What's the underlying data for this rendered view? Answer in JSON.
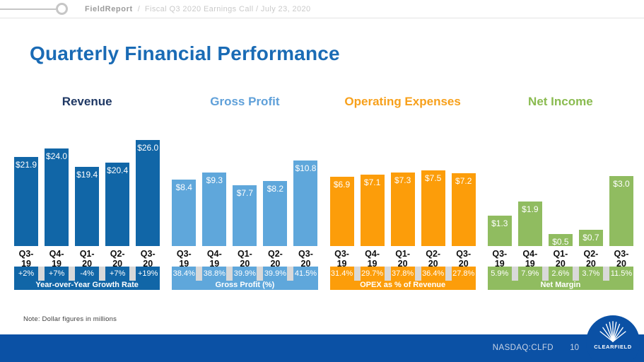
{
  "header": {
    "brand": "FieldReport",
    "sep": "/",
    "subtitle": "Fiscal Q3 2020 Earnings Call / July 23, 2020"
  },
  "page_title": "Quarterly Financial Performance",
  "note": "Note: Dollar figures in millions",
  "footer": {
    "ticker": "NASDAQ:CLFD",
    "page_number": "10",
    "logo_text": "CLEARFIELD"
  },
  "colors": {
    "title_blue": "#1a6bb5",
    "revenue_bar": "#1166a7",
    "gross_profit_bar": "#5fa7db",
    "opex_bar": "#fc9d0a",
    "net_income_bar": "#90bc60",
    "footer_bg": "#0b51a5",
    "strip_divider": "#d9d9d9"
  },
  "chart_data": [
    {
      "type": "bar",
      "title": "Revenue",
      "title_color": "#1f3864",
      "bar_color": "#1166a7",
      "categories": [
        "Q3-19",
        "Q4-19",
        "Q1-20",
        "Q2-20",
        "Q3-20"
      ],
      "values": [
        21.9,
        24.0,
        19.4,
        20.4,
        26.0
      ],
      "value_labels": [
        "$21.9",
        "$24.0",
        "$19.4",
        "$20.4",
        "$26.0"
      ],
      "footer_values": [
        "+2%",
        "+7%",
        "-4%",
        "+7%",
        "+19%"
      ],
      "footer_label": "Year-over-Year Growth Rate",
      "units": "USD millions"
    },
    {
      "type": "bar",
      "title": "Gross Profit",
      "title_color": "#5fa0d9",
      "bar_color": "#5fa7db",
      "categories": [
        "Q3-19",
        "Q4-19",
        "Q1-20",
        "Q2-20",
        "Q3-20"
      ],
      "values": [
        8.4,
        9.3,
        7.7,
        8.2,
        10.8
      ],
      "value_labels": [
        "$8.4",
        "$9.3",
        "$7.7",
        "$8.2",
        "$10.8"
      ],
      "footer_values": [
        "38.4%",
        "38.8%",
        "39.9%",
        "39.9%",
        "41.5%"
      ],
      "footer_label": "Gross Profit (%)",
      "units": "USD millions"
    },
    {
      "type": "bar",
      "title": "Operating Expenses",
      "title_color": "#f7a01b",
      "bar_color": "#fc9d0a",
      "categories": [
        "Q3-19",
        "Q4-19",
        "Q1-20",
        "Q2-20",
        "Q3-20"
      ],
      "values": [
        6.9,
        7.1,
        7.3,
        7.5,
        7.2
      ],
      "value_labels": [
        "$6.9",
        "$7.1",
        "$7.3",
        "$7.5",
        "$7.2"
      ],
      "footer_values": [
        "31.4%",
        "29.7%",
        "37.8%",
        "36.4%",
        "27.8%"
      ],
      "footer_label": "OPEX as % of Revenue",
      "units": "USD millions"
    },
    {
      "type": "bar",
      "title": "Net Income",
      "title_color": "#8abb50",
      "bar_color": "#90bc60",
      "categories": [
        "Q3-19",
        "Q4-19",
        "Q1-20",
        "Q2-20",
        "Q3-20"
      ],
      "values": [
        1.3,
        1.9,
        0.5,
        0.7,
        3.0
      ],
      "value_labels": [
        "$1.3",
        "$1.9",
        "$0.5",
        "$0.7",
        "$3.0"
      ],
      "footer_values": [
        "5.9%",
        "7.9%",
        "2.6%",
        "3.7%",
        "11.5%"
      ],
      "footer_label": "Net Margin",
      "units": "USD millions"
    }
  ]
}
